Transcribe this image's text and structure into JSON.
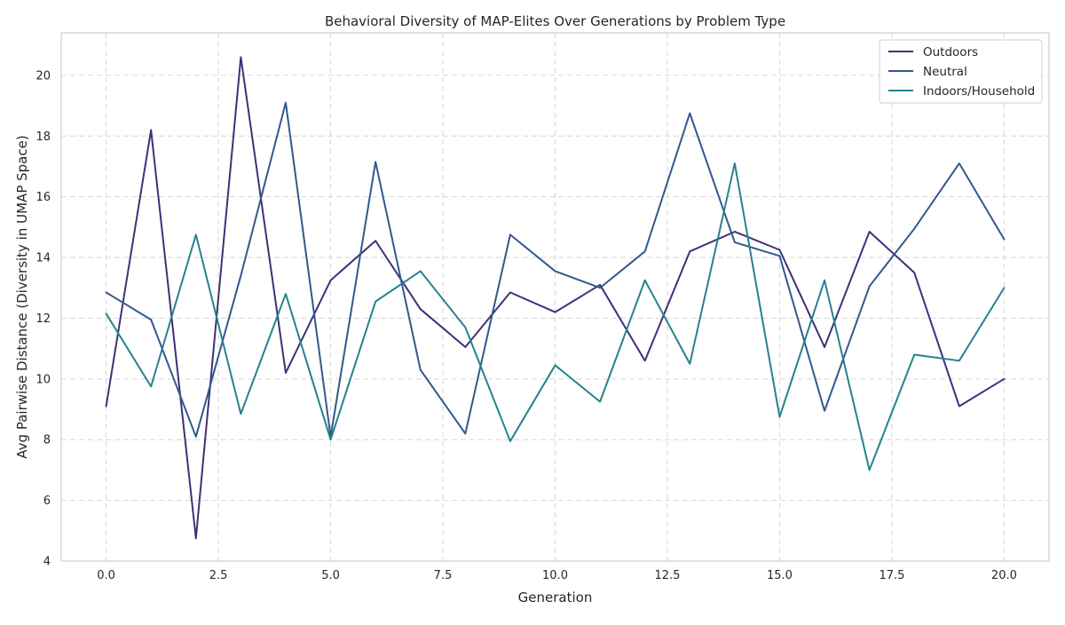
{
  "chart_data": {
    "type": "line",
    "title": "Behavioral Diversity of MAP-Elites Over Generations by Problem Type",
    "xlabel": "Generation",
    "ylabel": "Avg Pairwise Distance (Diversity in UMAP Space)",
    "xlim": [
      -1,
      21
    ],
    "ylim": [
      4,
      21.4
    ],
    "xticks": [
      0,
      2.5,
      5,
      7.5,
      10,
      12.5,
      15,
      17.5,
      20
    ],
    "xtick_labels": [
      "0.0",
      "2.5",
      "5.0",
      "7.5",
      "10.0",
      "12.5",
      "15.0",
      "17.5",
      "20.0"
    ],
    "yticks": [
      4,
      6,
      8,
      10,
      12,
      14,
      16,
      18,
      20
    ],
    "ytick_labels": [
      "4",
      "6",
      "8",
      "10",
      "12",
      "14",
      "16",
      "18",
      "20"
    ],
    "grid": true,
    "legend_position": "top-right",
    "x": [
      0,
      1,
      2,
      3,
      4,
      5,
      6,
      7,
      8,
      9,
      10,
      11,
      12,
      13,
      14,
      15,
      16,
      17,
      18,
      19,
      20
    ],
    "series": [
      {
        "name": "Outdoors",
        "color": "#413077",
        "values": [
          9.1,
          18.2,
          4.75,
          20.6,
          10.2,
          13.25,
          14.55,
          12.3,
          11.05,
          12.85,
          12.2,
          13.1,
          10.6,
          14.2,
          14.85,
          14.25,
          11.05,
          14.85,
          13.5,
          9.1,
          10.0
        ]
      },
      {
        "name": "Neutral",
        "color": "#31598c",
        "values": [
          12.85,
          11.95,
          8.1,
          13.4,
          19.1,
          8.1,
          17.15,
          10.3,
          8.2,
          14.75,
          13.55,
          13.0,
          14.2,
          18.75,
          14.5,
          14.05,
          8.95,
          13.05,
          14.95,
          17.1,
          14.6
        ]
      },
      {
        "name": "Indoors/Household",
        "color": "#26828e",
        "values": [
          12.15,
          9.75,
          14.75,
          8.85,
          12.8,
          8.0,
          12.55,
          13.55,
          11.7,
          7.95,
          10.45,
          9.25,
          13.25,
          10.5,
          17.1,
          8.75,
          13.25,
          7.0,
          10.8,
          10.6,
          13.0
        ]
      }
    ]
  }
}
